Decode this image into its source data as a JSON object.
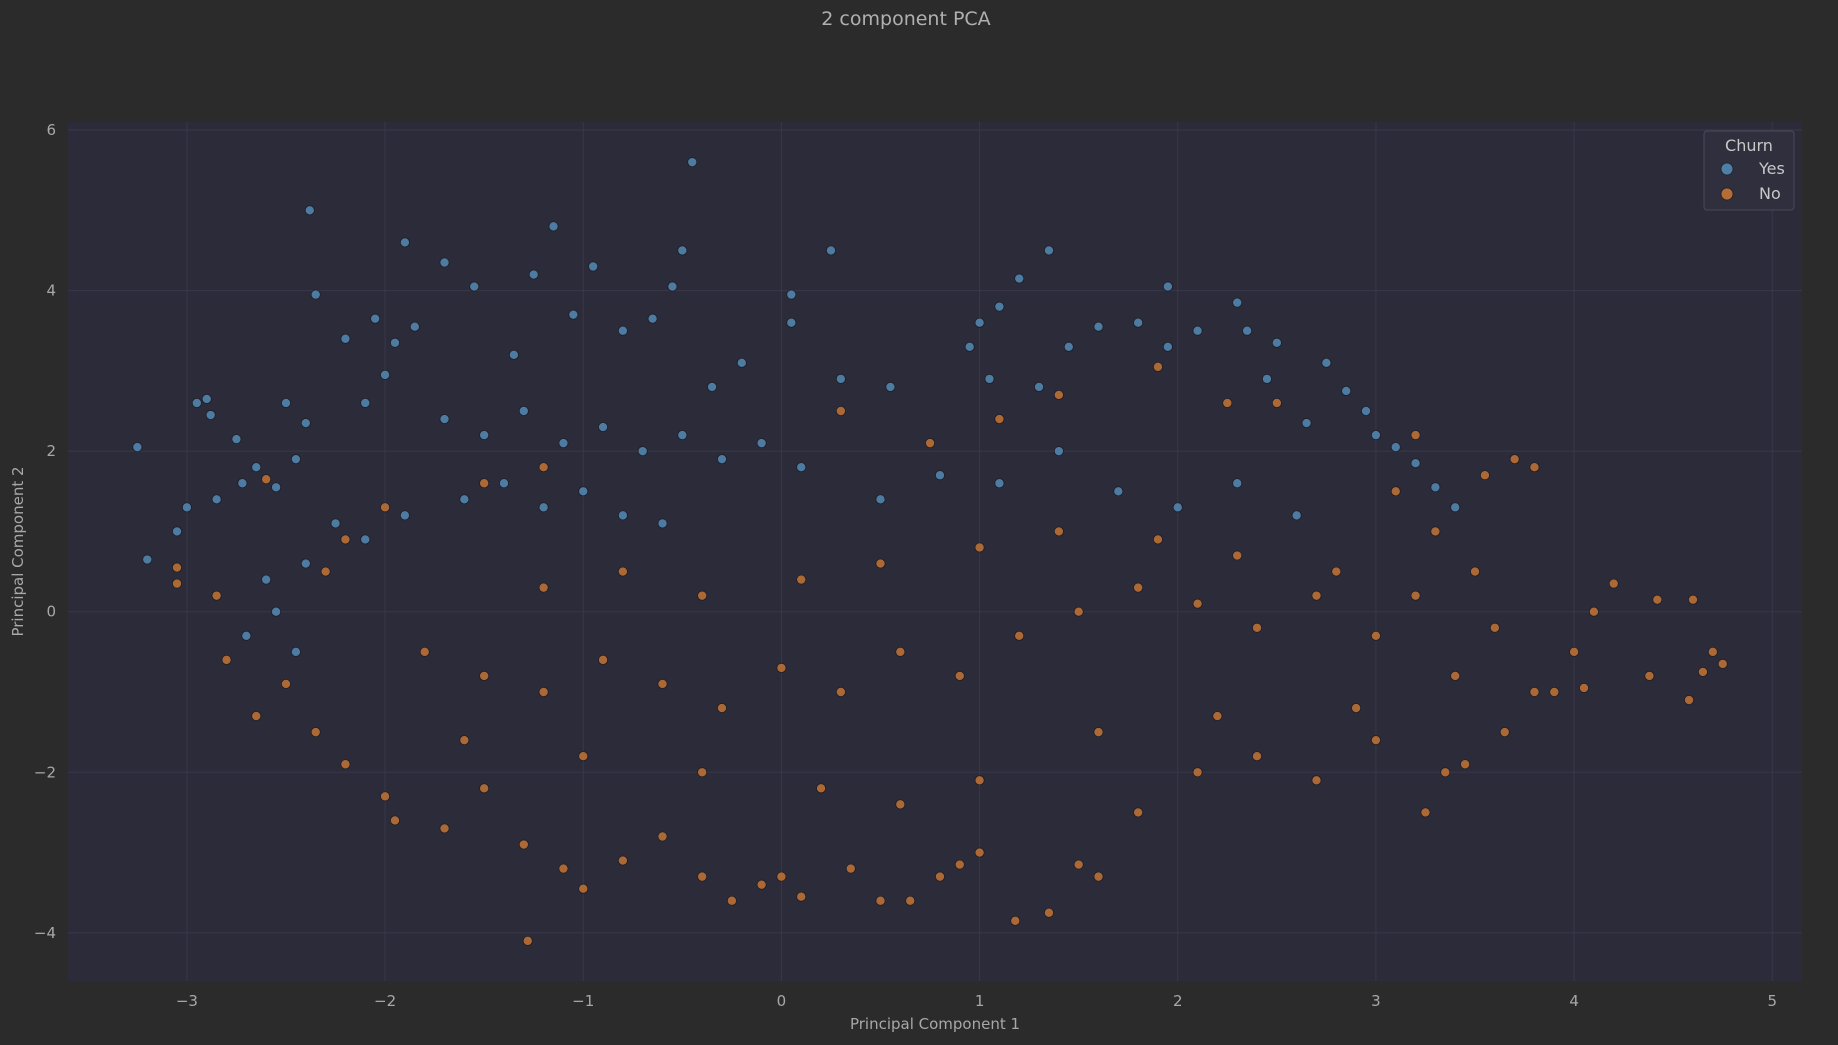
{
  "chart_data": {
    "type": "scatter",
    "title": "2 component PCA",
    "xlabel": "Principal Component 1",
    "ylabel": "Principal Component 2",
    "xlim": [
      -3.6,
      5.15
    ],
    "ylim": [
      -4.6,
      6.1
    ],
    "xticks": [
      -3,
      -2,
      -1,
      0,
      1,
      2,
      3,
      4,
      5
    ],
    "yticks": [
      -4,
      -2,
      0,
      2,
      4,
      6
    ],
    "grid": true,
    "legend": {
      "title": "Churn",
      "placement": "top-right"
    },
    "series": [
      {
        "name": "Yes",
        "color": "#4f7fa6",
        "points": [
          [
            -3.25,
            2.05
          ],
          [
            -3.2,
            0.65
          ],
          [
            -3.05,
            1.0
          ],
          [
            -3.0,
            1.3
          ],
          [
            -2.95,
            2.6
          ],
          [
            -2.9,
            2.65
          ],
          [
            -2.88,
            2.45
          ],
          [
            -2.85,
            1.4
          ],
          [
            -2.72,
            1.6
          ],
          [
            -2.75,
            2.15
          ],
          [
            -2.65,
            1.8
          ],
          [
            -2.5,
            2.6
          ],
          [
            -2.55,
            1.55
          ],
          [
            -2.45,
            1.9
          ],
          [
            -2.4,
            2.35
          ],
          [
            -2.35,
            3.95
          ],
          [
            -2.38,
            5.0
          ],
          [
            -2.2,
            3.4
          ],
          [
            -2.1,
            2.6
          ],
          [
            -2.0,
            2.95
          ],
          [
            -1.85,
            3.55
          ],
          [
            -1.95,
            3.35
          ],
          [
            -1.9,
            4.6
          ],
          [
            -2.05,
            3.65
          ],
          [
            -1.7,
            4.35
          ],
          [
            -1.55,
            4.05
          ],
          [
            -1.35,
            3.2
          ],
          [
            -1.25,
            4.2
          ],
          [
            -1.15,
            4.8
          ],
          [
            -1.05,
            3.7
          ],
          [
            -0.95,
            4.3
          ],
          [
            -0.8,
            3.5
          ],
          [
            -0.65,
            3.65
          ],
          [
            -0.5,
            4.5
          ],
          [
            -0.35,
            2.8
          ],
          [
            -0.45,
            5.6
          ],
          [
            -0.55,
            4.05
          ],
          [
            -0.2,
            3.1
          ],
          [
            0.05,
            3.95
          ],
          [
            0.05,
            3.6
          ],
          [
            0.25,
            4.5
          ],
          [
            0.3,
            2.9
          ],
          [
            0.55,
            2.8
          ],
          [
            0.95,
            3.3
          ],
          [
            1.0,
            3.6
          ],
          [
            1.05,
            2.9
          ],
          [
            1.1,
            3.8
          ],
          [
            1.2,
            4.15
          ],
          [
            1.3,
            2.8
          ],
          [
            1.35,
            4.5
          ],
          [
            1.45,
            3.3
          ],
          [
            1.6,
            3.55
          ],
          [
            1.8,
            3.6
          ],
          [
            1.95,
            3.3
          ],
          [
            1.95,
            4.05
          ],
          [
            2.1,
            3.5
          ],
          [
            2.3,
            3.85
          ],
          [
            2.35,
            3.5
          ],
          [
            2.45,
            2.9
          ],
          [
            2.5,
            3.35
          ],
          [
            2.65,
            2.35
          ],
          [
            2.75,
            3.1
          ],
          [
            2.85,
            2.75
          ],
          [
            2.95,
            2.5
          ],
          [
            3.0,
            2.2
          ],
          [
            3.1,
            2.05
          ],
          [
            3.2,
            1.85
          ],
          [
            3.3,
            1.55
          ],
          [
            3.4,
            1.3
          ],
          [
            -1.7,
            2.4
          ],
          [
            -1.5,
            2.2
          ],
          [
            -1.3,
            2.5
          ],
          [
            -1.1,
            2.1
          ],
          [
            -0.9,
            2.3
          ],
          [
            -0.7,
            2.0
          ],
          [
            -0.5,
            2.2
          ],
          [
            -0.3,
            1.9
          ],
          [
            -0.1,
            2.1
          ],
          [
            0.1,
            1.8
          ],
          [
            -2.25,
            1.1
          ],
          [
            -2.1,
            0.9
          ],
          [
            -1.9,
            1.2
          ],
          [
            -1.6,
            1.4
          ],
          [
            -1.4,
            1.6
          ],
          [
            -1.2,
            1.3
          ],
          [
            -1.0,
            1.5
          ],
          [
            -0.8,
            1.2
          ],
          [
            -0.6,
            1.1
          ],
          [
            -2.6,
            0.4
          ],
          [
            -2.4,
            0.6
          ],
          [
            -2.55,
            0.0
          ],
          [
            -2.7,
            -0.3
          ],
          [
            -2.45,
            -0.5
          ],
          [
            0.5,
            1.4
          ],
          [
            0.8,
            1.7
          ],
          [
            1.1,
            1.6
          ],
          [
            1.4,
            2.0
          ],
          [
            1.7,
            1.5
          ],
          [
            2.0,
            1.3
          ],
          [
            2.3,
            1.6
          ],
          [
            2.6,
            1.2
          ]
        ]
      },
      {
        "name": "No",
        "color": "#b46d35",
        "points": [
          [
            -2.85,
            0.2
          ],
          [
            -2.8,
            -0.6
          ],
          [
            -2.65,
            -1.3
          ],
          [
            -2.5,
            -0.9
          ],
          [
            -2.35,
            -1.5
          ],
          [
            -2.2,
            -1.9
          ],
          [
            -2.0,
            -2.3
          ],
          [
            -1.95,
            -2.6
          ],
          [
            -1.7,
            -2.7
          ],
          [
            -1.5,
            -2.2
          ],
          [
            -1.3,
            -2.9
          ],
          [
            -1.28,
            -4.1
          ],
          [
            -1.1,
            -3.2
          ],
          [
            -1.0,
            -3.45
          ],
          [
            -0.8,
            -3.1
          ],
          [
            -0.6,
            -2.8
          ],
          [
            -0.4,
            -3.3
          ],
          [
            -0.25,
            -3.6
          ],
          [
            -0.1,
            -3.4
          ],
          [
            0.0,
            -3.3
          ],
          [
            0.1,
            -3.55
          ],
          [
            0.35,
            -3.2
          ],
          [
            0.5,
            -3.6
          ],
          [
            0.65,
            -3.6
          ],
          [
            0.8,
            -3.3
          ],
          [
            0.9,
            -3.15
          ],
          [
            1.0,
            -3.0
          ],
          [
            1.18,
            -3.85
          ],
          [
            1.35,
            -3.75
          ],
          [
            1.5,
            -3.15
          ],
          [
            1.6,
            -3.3
          ],
          [
            1.8,
            -2.5
          ],
          [
            2.1,
            -2.0
          ],
          [
            2.4,
            -1.8
          ],
          [
            2.7,
            -2.1
          ],
          [
            3.0,
            -1.6
          ],
          [
            3.25,
            -2.5
          ],
          [
            3.35,
            -2.0
          ],
          [
            3.45,
            -1.9
          ],
          [
            3.65,
            -1.5
          ],
          [
            3.8,
            -1.0
          ],
          [
            4.0,
            -0.5
          ],
          [
            4.1,
            0.0
          ],
          [
            4.2,
            0.35
          ],
          [
            4.42,
            0.15
          ],
          [
            4.6,
            0.15
          ],
          [
            4.58,
            -1.1
          ],
          [
            4.38,
            -0.8
          ],
          [
            4.65,
            -0.75
          ],
          [
            4.7,
            -0.5
          ],
          [
            4.75,
            -0.65
          ],
          [
            4.05,
            -0.95
          ],
          [
            3.9,
            -1.0
          ],
          [
            3.5,
            0.5
          ],
          [
            3.3,
            1.0
          ],
          [
            3.1,
            1.5
          ],
          [
            3.2,
            2.2
          ],
          [
            3.55,
            1.7
          ],
          [
            3.7,
            1.9
          ],
          [
            3.8,
            1.8
          ],
          [
            2.5,
            2.6
          ],
          [
            2.25,
            2.6
          ],
          [
            1.9,
            3.05
          ],
          [
            1.4,
            2.7
          ],
          [
            1.1,
            2.4
          ],
          [
            0.75,
            2.1
          ],
          [
            0.3,
            2.5
          ],
          [
            -1.2,
            1.8
          ],
          [
            -1.5,
            1.6
          ],
          [
            -2.0,
            1.3
          ],
          [
            -2.2,
            0.9
          ],
          [
            -2.3,
            0.5
          ],
          [
            -2.6,
            1.65
          ],
          [
            -3.05,
            0.55
          ],
          [
            -3.05,
            0.35
          ],
          [
            -1.8,
            -0.5
          ],
          [
            -1.5,
            -0.8
          ],
          [
            -1.2,
            -1.0
          ],
          [
            -0.9,
            -0.6
          ],
          [
            -0.6,
            -0.9
          ],
          [
            -0.3,
            -1.2
          ],
          [
            0.0,
            -0.7
          ],
          [
            0.3,
            -1.0
          ],
          [
            0.6,
            -0.5
          ],
          [
            0.9,
            -0.8
          ],
          [
            1.2,
            -0.3
          ],
          [
            1.5,
            0.0
          ],
          [
            1.8,
            0.3
          ],
          [
            2.1,
            0.1
          ],
          [
            2.4,
            -0.2
          ],
          [
            2.7,
            0.2
          ],
          [
            3.0,
            -0.3
          ],
          [
            -1.6,
            -1.6
          ],
          [
            -1.0,
            -1.8
          ],
          [
            -0.4,
            -2.0
          ],
          [
            0.2,
            -2.2
          ],
          [
            0.6,
            -2.4
          ],
          [
            1.0,
            -2.1
          ],
          [
            -1.2,
            0.3
          ],
          [
            -0.8,
            0.5
          ],
          [
            -0.4,
            0.2
          ],
          [
            0.1,
            0.4
          ],
          [
            0.5,
            0.6
          ],
          [
            1.0,
            0.8
          ],
          [
            1.4,
            1.0
          ],
          [
            1.9,
            0.9
          ],
          [
            2.3,
            0.7
          ],
          [
            2.8,
            0.5
          ],
          [
            3.2,
            0.2
          ],
          [
            3.6,
            -0.2
          ],
          [
            3.4,
            -0.8
          ],
          [
            2.9,
            -1.2
          ],
          [
            2.2,
            -1.3
          ],
          [
            1.6,
            -1.5
          ]
        ]
      }
    ]
  }
}
